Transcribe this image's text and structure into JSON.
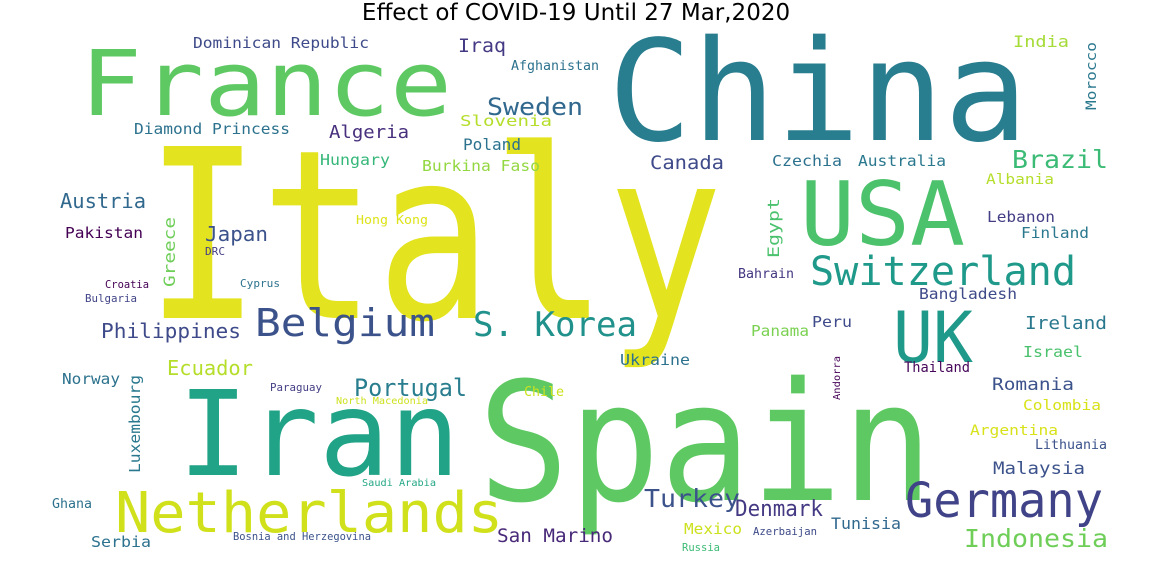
{
  "chart_data": {
    "type": "wordcloud",
    "title": "Effect of COVID-19 Until 27 Mar,2020",
    "words": [
      {
        "text": "Italy",
        "color": "#e3e31f"
      },
      {
        "text": "China",
        "color": "#287d8e"
      },
      {
        "text": "Spain",
        "color": "#5ec962"
      },
      {
        "text": "Iran",
        "color": "#20a386"
      },
      {
        "text": "France",
        "color": "#5ec962"
      },
      {
        "text": "USA",
        "color": "#4cc26c"
      },
      {
        "text": "UK",
        "color": "#1f9a8a"
      },
      {
        "text": "Germany",
        "color": "#404387"
      },
      {
        "text": "Netherlands",
        "color": "#d0e11c"
      },
      {
        "text": "Switzerland",
        "color": "#1f9a8a"
      },
      {
        "text": "Belgium",
        "color": "#3b528b"
      },
      {
        "text": "S. Korea",
        "color": "#21918c"
      },
      {
        "text": "Brazil",
        "color": "#3bbb75"
      },
      {
        "text": "Indonesia",
        "color": "#6ece58"
      },
      {
        "text": "Sweden",
        "color": "#31688e"
      },
      {
        "text": "Turkey",
        "color": "#3b528b"
      },
      {
        "text": "Denmark",
        "color": "#443983"
      },
      {
        "text": "Portugal",
        "color": "#287d8e"
      },
      {
        "text": "Philippines",
        "color": "#3e4a89"
      },
      {
        "text": "Ecuador",
        "color": "#b5de2b"
      },
      {
        "text": "Austria",
        "color": "#31688e"
      },
      {
        "text": "Japan",
        "color": "#3b528b"
      },
      {
        "text": "San Marino",
        "color": "#482878"
      },
      {
        "text": "Canada",
        "color": "#3e4a89"
      },
      {
        "text": "Ireland",
        "color": "#2a788e"
      },
      {
        "text": "Romania",
        "color": "#3b528b"
      },
      {
        "text": "Malaysia",
        "color": "#3b528b"
      },
      {
        "text": "Tunisia",
        "color": "#31688e"
      },
      {
        "text": "Algeria",
        "color": "#472f7d"
      },
      {
        "text": "Iraq",
        "color": "#443983"
      },
      {
        "text": "Poland",
        "color": "#2c728e"
      },
      {
        "text": "Diamond Princess",
        "color": "#2c728e"
      },
      {
        "text": "Dominican Republic",
        "color": "#3e4a89"
      },
      {
        "text": "India",
        "color": "#a5db36"
      },
      {
        "text": "Hungary",
        "color": "#35b779"
      },
      {
        "text": "Burkina Faso",
        "color": "#93d741"
      },
      {
        "text": "Slovenia",
        "color": "#b5de2b"
      },
      {
        "text": "Czechia",
        "color": "#2c728e"
      },
      {
        "text": "Australia",
        "color": "#2a788e"
      },
      {
        "text": "Lebanon",
        "color": "#433e85"
      },
      {
        "text": "Finland",
        "color": "#2a788e"
      },
      {
        "text": "Albania",
        "color": "#b5de2b"
      },
      {
        "text": "Egypt",
        "color": "#4ac16d"
      },
      {
        "text": "Greece",
        "color": "#6ece58"
      },
      {
        "text": "Pakistan",
        "color": "#440154"
      },
      {
        "text": "Bangladesh",
        "color": "#3e4a89"
      },
      {
        "text": "Israel",
        "color": "#4ac16d"
      },
      {
        "text": "Peru",
        "color": "#3e4a89"
      },
      {
        "text": "Panama",
        "color": "#7ad151"
      },
      {
        "text": "Ukraine",
        "color": "#2c728e"
      },
      {
        "text": "Thailand",
        "color": "#46075a"
      },
      {
        "text": "Norway",
        "color": "#2c728e"
      },
      {
        "text": "Luxembourg",
        "color": "#2a788e"
      },
      {
        "text": "Colombia",
        "color": "#d8e219"
      },
      {
        "text": "Argentina",
        "color": "#d8e219"
      },
      {
        "text": "Lithuania",
        "color": "#3b528b"
      },
      {
        "text": "Mexico",
        "color": "#cde11d"
      },
      {
        "text": "Serbia",
        "color": "#2c728e"
      },
      {
        "text": "Ghana",
        "color": "#2c728e"
      },
      {
        "text": "Morocco",
        "color": "#2a788e"
      },
      {
        "text": "Afghanistan",
        "color": "#2c728e"
      },
      {
        "text": "Hong Kong",
        "color": "#dde318"
      },
      {
        "text": "Bahrain",
        "color": "#453781"
      },
      {
        "text": "Chile",
        "color": "#cde11d"
      },
      {
        "text": "Paraguay",
        "color": "#433e85"
      },
      {
        "text": "North Macedonia",
        "color": "#cde11d"
      },
      {
        "text": "Saudi Arabia",
        "color": "#22a785"
      },
      {
        "text": "Bosnia and Herzegovina",
        "color": "#3b528b"
      },
      {
        "text": "Azerbaijan",
        "color": "#3e4a89"
      },
      {
        "text": "Russia",
        "color": "#3bbb75"
      },
      {
        "text": "Croatia",
        "color": "#440154"
      },
      {
        "text": "Bulgaria",
        "color": "#414487"
      },
      {
        "text": "Cyprus",
        "color": "#2c728e"
      },
      {
        "text": "DRC",
        "color": "#433e85"
      },
      {
        "text": "Andorra",
        "color": "#440154"
      }
    ]
  }
}
